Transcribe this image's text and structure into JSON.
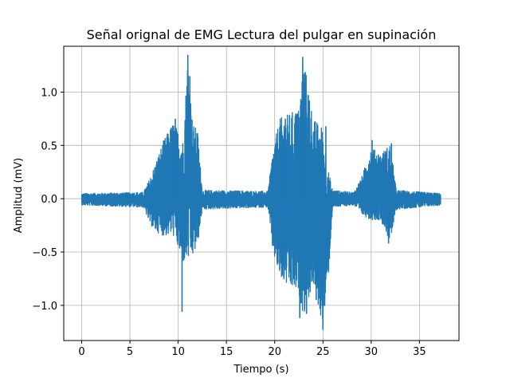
{
  "chart_data": {
    "type": "line",
    "title": "Señal orignal de EMG Lectura del pulgar en supinación",
    "xlabel": "Tiempo (s)",
    "ylabel": "Amplitud (mV)",
    "xlim": [
      -1.86,
      39.1
    ],
    "ylim": [
      -1.33,
      1.43
    ],
    "x_ticks": [
      0,
      5,
      10,
      15,
      20,
      25,
      30,
      35
    ],
    "y_ticks": [
      -1.0,
      -0.5,
      0.0,
      0.5,
      1.0
    ],
    "y_tick_labels": [
      "−1.0",
      "−0.5",
      "0.0",
      "0.5",
      "1.0"
    ],
    "grid": true,
    "line_color": "#1f77b4",
    "series": [
      {
        "x_start": 0.0,
        "x_end": 37.2,
        "envelope": [
          {
            "t": 0.0,
            "low": -0.06,
            "high": 0.05
          },
          {
            "t": 6.4,
            "low": -0.08,
            "high": 0.06
          },
          {
            "t": 7.0,
            "low": -0.22,
            "high": 0.18
          },
          {
            "t": 7.5,
            "low": -0.3,
            "high": 0.3
          },
          {
            "t": 8.5,
            "low": -0.35,
            "high": 0.55
          },
          {
            "t": 9.5,
            "low": -0.35,
            "high": 0.72
          },
          {
            "t": 10.5,
            "low": -0.6,
            "high": 0.55
          },
          {
            "t": 11.0,
            "low": -0.6,
            "high": 1.35
          },
          {
            "t": 11.5,
            "low": -0.55,
            "high": 0.7
          },
          {
            "t": 12.0,
            "low": -0.45,
            "high": 0.65
          },
          {
            "t": 12.5,
            "low": -0.1,
            "high": 0.08
          },
          {
            "t": 19.3,
            "low": -0.08,
            "high": 0.07
          },
          {
            "t": 19.8,
            "low": -0.5,
            "high": 0.45
          },
          {
            "t": 20.5,
            "low": -0.75,
            "high": 0.75
          },
          {
            "t": 21.5,
            "low": -0.85,
            "high": 0.8
          },
          {
            "t": 22.5,
            "low": -0.9,
            "high": 0.85
          },
          {
            "t": 23.0,
            "low": -1.1,
            "high": 1.33
          },
          {
            "t": 24.0,
            "low": -0.8,
            "high": 0.75
          },
          {
            "t": 25.0,
            "low": -1.22,
            "high": 0.68
          },
          {
            "t": 25.6,
            "low": -0.7,
            "high": 0.25
          },
          {
            "t": 26.0,
            "low": -0.08,
            "high": 0.08
          },
          {
            "t": 28.2,
            "low": -0.06,
            "high": 0.06
          },
          {
            "t": 29.0,
            "low": -0.15,
            "high": 0.2
          },
          {
            "t": 30.0,
            "low": -0.2,
            "high": 0.48
          },
          {
            "t": 31.0,
            "low": -0.2,
            "high": 0.42
          },
          {
            "t": 32.0,
            "low": -0.42,
            "high": 0.52
          },
          {
            "t": 32.6,
            "low": -0.1,
            "high": 0.08
          },
          {
            "t": 37.2,
            "low": -0.06,
            "high": 0.05
          }
        ],
        "spikes": [
          {
            "t": 10.4,
            "value": -1.06
          },
          {
            "t": 10.7,
            "value": 0.65
          },
          {
            "t": 11.0,
            "value": 1.35
          },
          {
            "t": 11.2,
            "value": 1.15
          },
          {
            "t": 9.7,
            "value": 0.75
          },
          {
            "t": 21.1,
            "value": 0.75
          },
          {
            "t": 20.8,
            "value": -0.72
          },
          {
            "t": 22.2,
            "value": 0.8
          },
          {
            "t": 22.6,
            "value": -1.12
          },
          {
            "t": 22.9,
            "value": 1.33
          },
          {
            "t": 23.3,
            "value": -1.08
          },
          {
            "t": 23.6,
            "value": 0.92
          },
          {
            "t": 24.3,
            "value": -0.95
          },
          {
            "t": 25.0,
            "value": -1.23
          },
          {
            "t": 25.3,
            "value": 0.68
          },
          {
            "t": 30.1,
            "value": 0.55
          },
          {
            "t": 31.8,
            "value": -0.42
          },
          {
            "t": 32.1,
            "value": 0.52
          }
        ]
      }
    ]
  }
}
